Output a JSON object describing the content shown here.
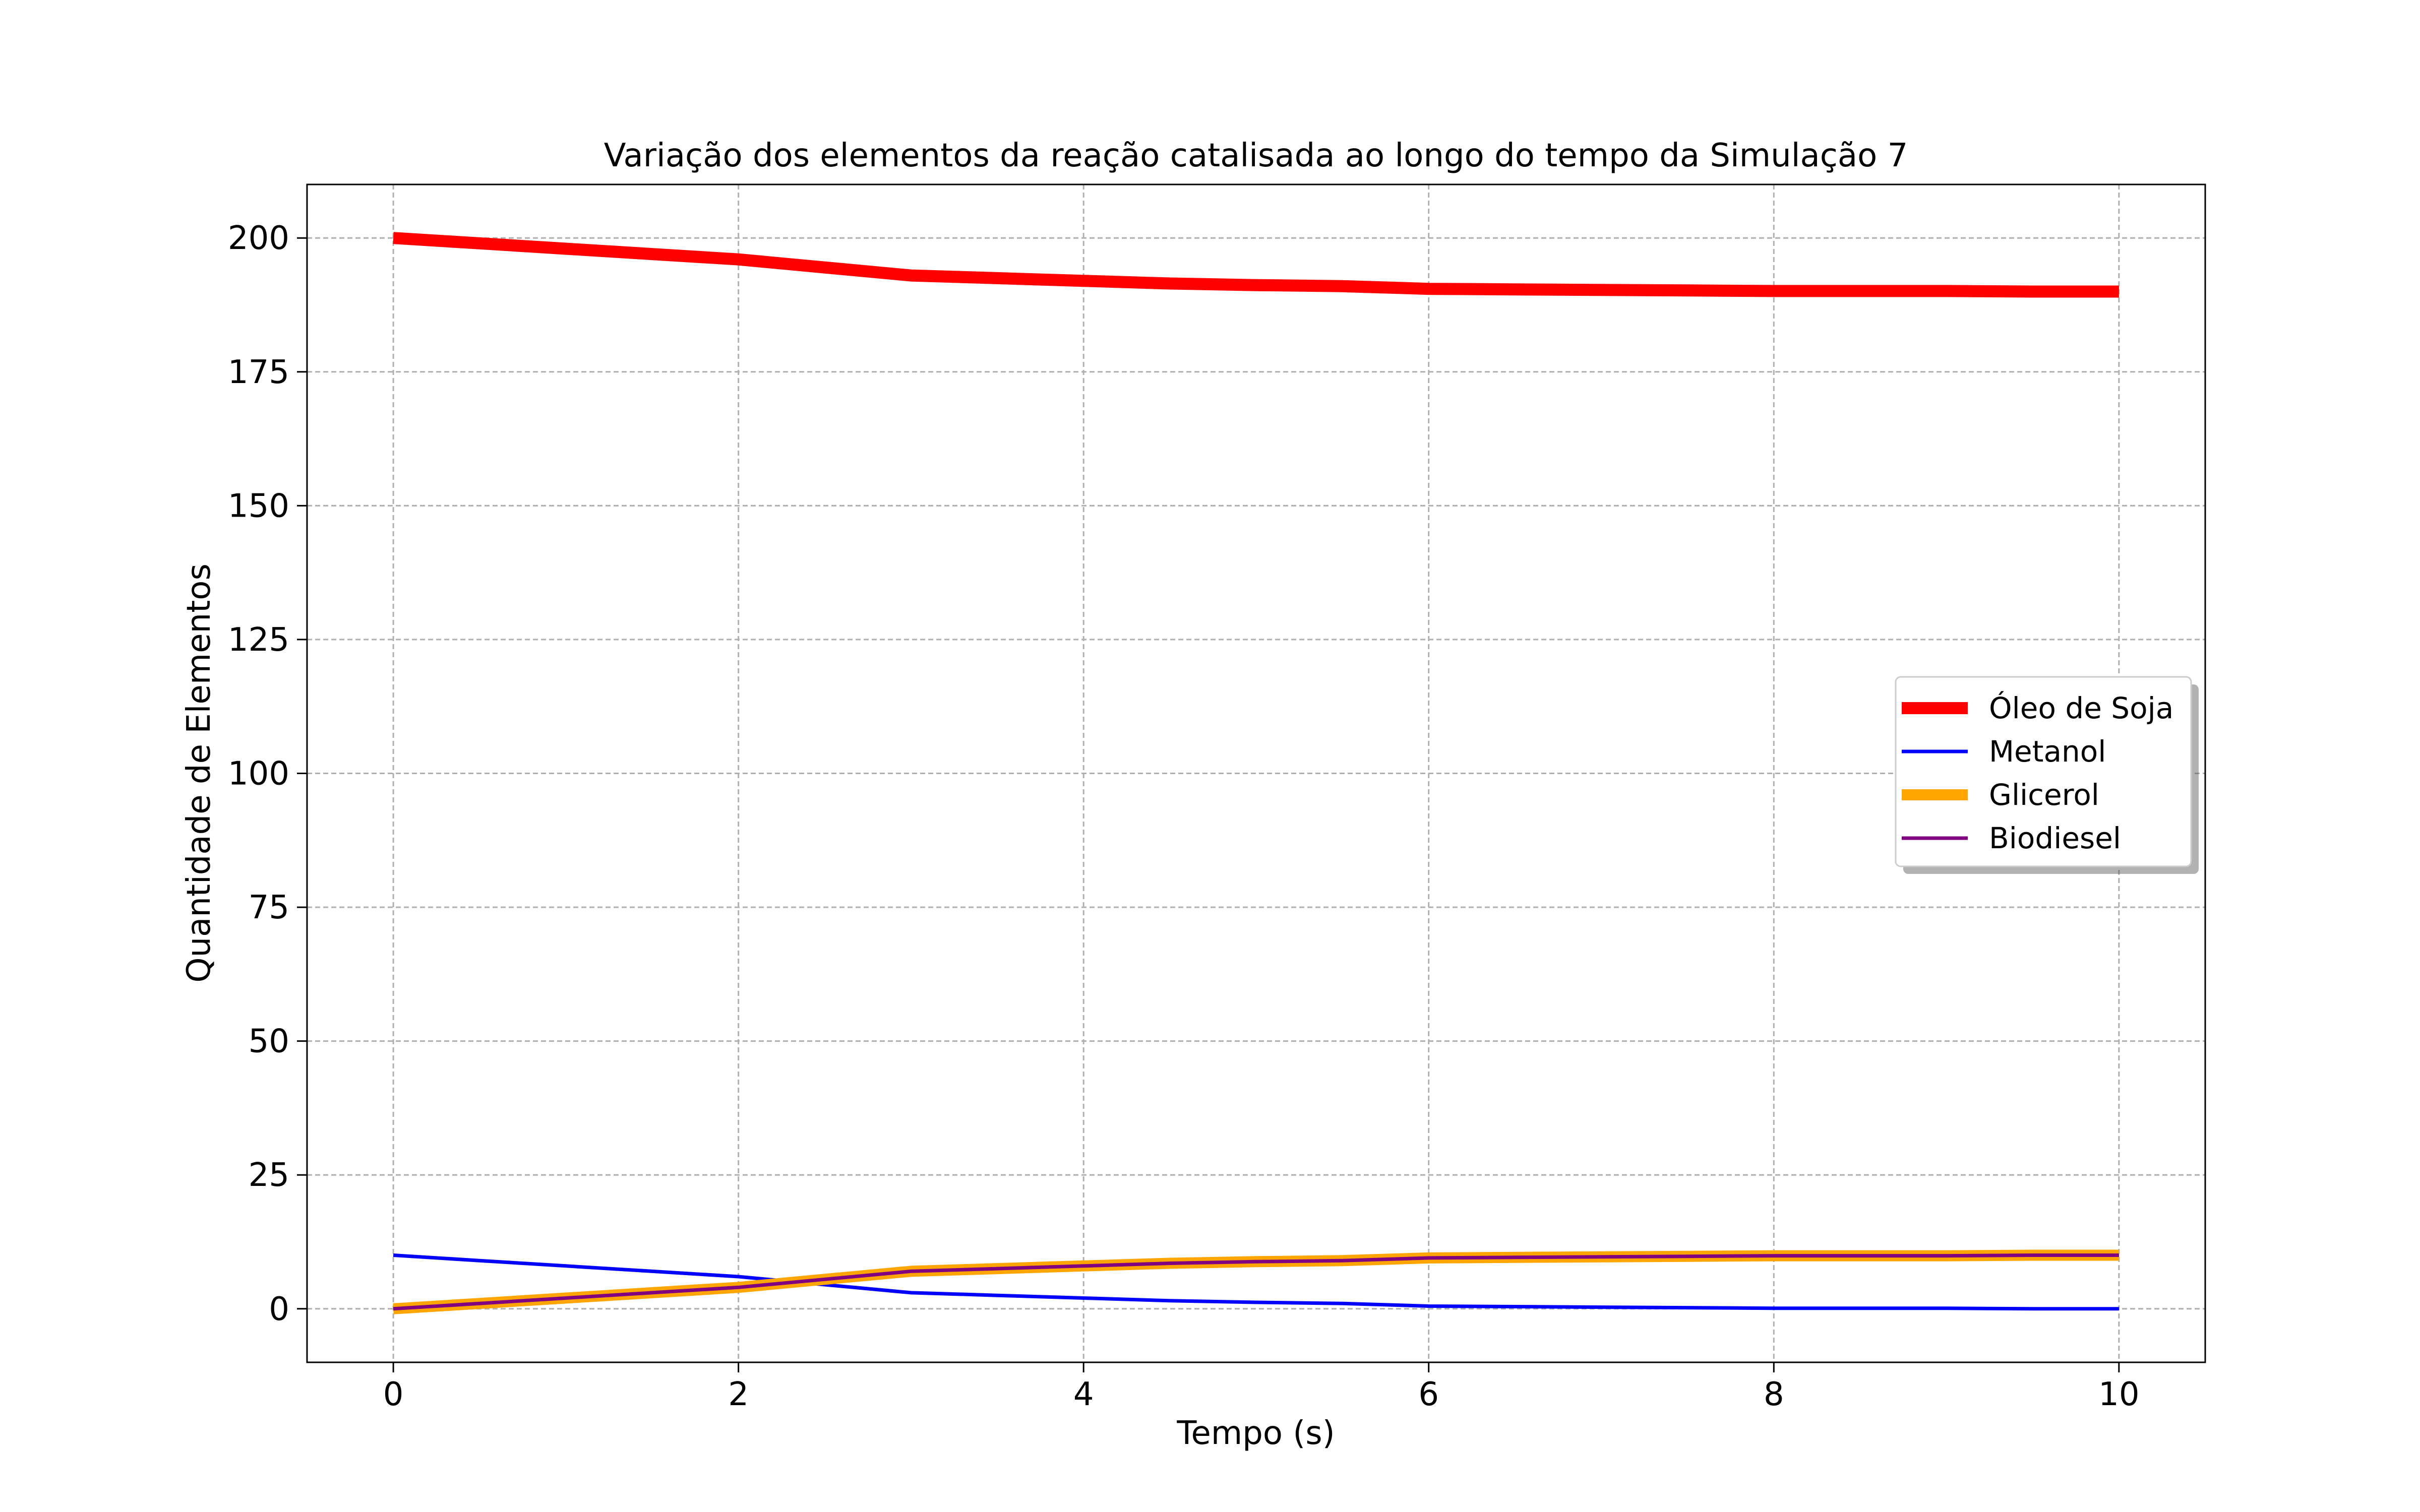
{
  "chart_data": {
    "type": "line",
    "title": "Variação dos elementos da reação catalisada ao longo do tempo da Simulação 7",
    "xlabel": "Tempo (s)",
    "ylabel": "Quantidade de Elementos",
    "xlim": [
      -0.5,
      10.5
    ],
    "ylim": [
      -10,
      210
    ],
    "xticks": [
      0,
      2,
      4,
      6,
      8,
      10
    ],
    "yticks": [
      0,
      25,
      50,
      75,
      100,
      125,
      150,
      175,
      200
    ],
    "grid": true,
    "legend_position": "center-right",
    "x": [
      0,
      0.5,
      1,
      1.5,
      2,
      2.5,
      3,
      3.5,
      4,
      4.5,
      5,
      5.5,
      6,
      6.5,
      7,
      7.5,
      8,
      8.5,
      9,
      9.5,
      10
    ],
    "series": [
      {
        "name": "Óleo de Soja",
        "color": "#ff0000",
        "values": [
          200,
          199,
          198,
          197,
          196,
          194.5,
          193,
          192.5,
          192,
          191.5,
          191.2,
          191,
          190.5,
          190.4,
          190.3,
          190.2,
          190.1,
          190.1,
          190.1,
          190,
          190
        ]
      },
      {
        "name": "Metanol",
        "color": "#0000ff",
        "values": [
          10,
          9,
          8,
          7,
          6,
          4.5,
          3,
          2.5,
          2,
          1.5,
          1.2,
          1,
          0.5,
          0.4,
          0.3,
          0.2,
          0.1,
          0.1,
          0.1,
          0,
          0
        ]
      },
      {
        "name": "Glicerol",
        "color": "#ffa500",
        "values": [
          0,
          1,
          2,
          3,
          4,
          5.5,
          7,
          7.5,
          8,
          8.5,
          8.8,
          9,
          9.5,
          9.6,
          9.7,
          9.8,
          9.9,
          9.9,
          9.9,
          10,
          10
        ]
      },
      {
        "name": "Biodiesel",
        "color": "#800080",
        "values": [
          0,
          1,
          2,
          3,
          4,
          5.5,
          7,
          7.5,
          8,
          8.5,
          8.8,
          9,
          9.5,
          9.6,
          9.7,
          9.8,
          9.9,
          9.9,
          9.9,
          10,
          10
        ]
      }
    ]
  }
}
